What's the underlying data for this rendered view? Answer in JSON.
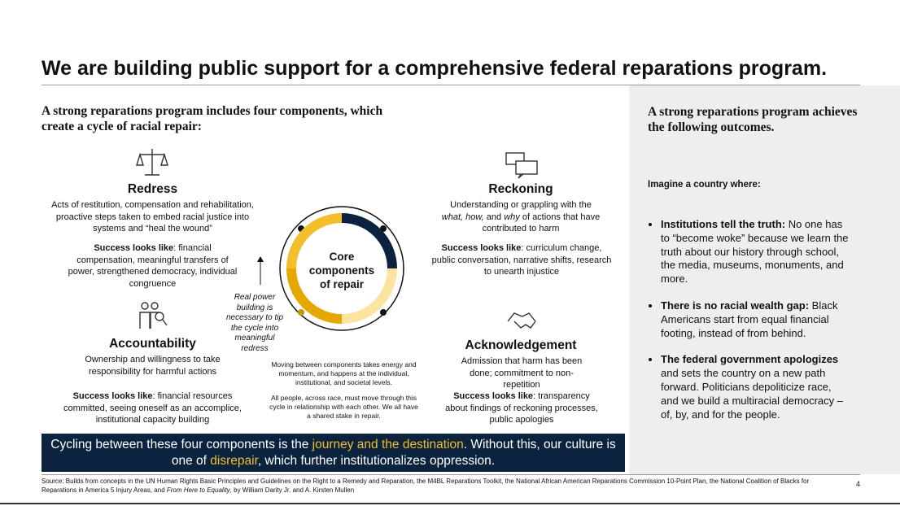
{
  "title": "We are building public support for a comprehensive federal reparations program.",
  "intro": "A strong reparations program includes four components, which create a cycle of racial repair:",
  "components": [
    {
      "name": "Redress",
      "description": "Acts of restitution, compensation and rehabilitation, proactive steps taken to embed racial justice into systems and “heal the wound”",
      "success_label": "Success looks like",
      "success_text": ": financial compensation, meaningful transfers of power, strengthened democracy, individual congruence"
    },
    {
      "name": "Reckoning",
      "description_parts": [
        "Understanding or grappling with the ",
        "what, how,",
        " and ",
        "why",
        " of actions that have contributed to harm"
      ],
      "success_label": "Success looks like",
      "success_text": ": curriculum change, public conversation, narrative shifts, research to unearth injustice"
    },
    {
      "name": "Accountability",
      "description": "Ownership and willingness to take responsibility for harmful actions",
      "success_label": "Success looks like",
      "success_text": ": financial resources committed, seeing oneself as an accomplice, institutional capacity building"
    },
    {
      "name": "Acknowledgement",
      "description": "Admission that harm has been done; commitment to non-repetition",
      "success_label": "Success looks like",
      "success_text": ": transparency about findings of reckoning processes, public apologies"
    }
  ],
  "center_label": "Core components of repair",
  "annotation": "Real power building is necessary to tip the cycle into meaningful redress",
  "center_notes": [
    "Moving between components takes energy and momentum, and happens at the individual, institutional, and societal levels.",
    "All people, across race, must move through this cycle in relationship with each other. We all have a shared stake in repair."
  ],
  "banner_parts": [
    "Cycling between these four components is the ",
    "journey and the destination",
    ". Without this, our culture is one of ",
    "disrepair",
    ", which further institutionalizes oppression."
  ],
  "outcomes": {
    "heading": "A strong reparations program achieves the following outcomes.",
    "lead": "Imagine a country where:",
    "bullets": [
      {
        "bold": "Institutions tell the truth:",
        "text": " No one has to “become woke” because we learn the truth about our history through school, the media, museums, monuments, and more."
      },
      {
        "bold": "There is no racial wealth gap:",
        "text": " Black Americans start from equal financial footing, instead of from behind."
      },
      {
        "bold": "The federal government apologizes",
        "text": " and sets the country on a new path forward. Politicians depoliticize race, and we build a multiracial democracy – of, by, and for the people."
      }
    ]
  },
  "footer": {
    "source_parts": [
      "Source: Builds from concepts in the UN Human Rights Basic Principles and Guidelines on the Right to a Remedy and Reparation, the M4BL Reparations Toolkit, the National African American Reparations Commission 10-Point Plan, the National Coalition of Blacks for Reparations in America 5 Injury Areas, and ",
      "From Here to Equality",
      ", by William Darity Jr. and A. Kirsten Mullen"
    ],
    "page": "4"
  }
}
